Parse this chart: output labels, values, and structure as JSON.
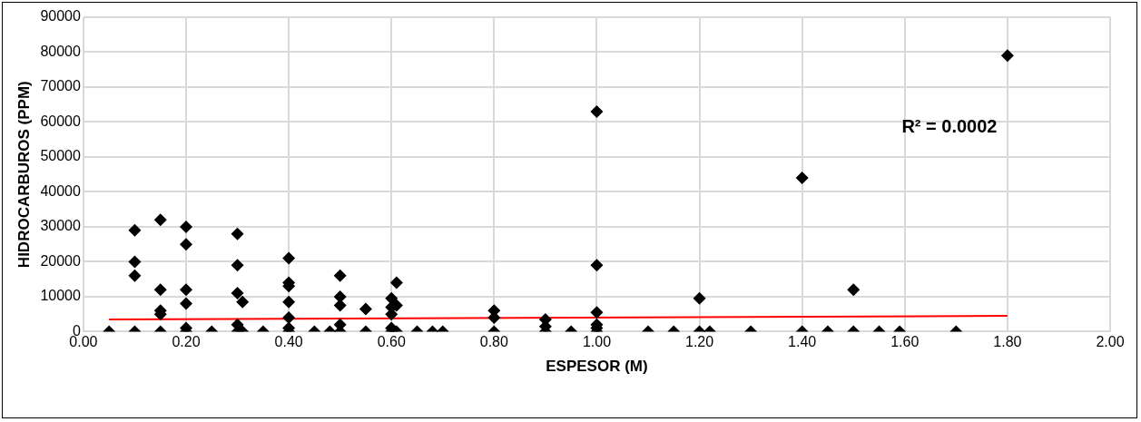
{
  "chart_data": {
    "type": "scatter",
    "xlabel": "ESPESOR (M)",
    "ylabel": "HIDROCARBUROS (PPM)",
    "xlim": [
      0,
      2
    ],
    "xticks": [
      {
        "value": 0,
        "label": "0.00"
      },
      {
        "value": 0.2,
        "label": "0.20"
      },
      {
        "value": 0.4,
        "label": "0.40"
      },
      {
        "value": 0.6,
        "label": "0.60"
      },
      {
        "value": 0.8,
        "label": "0.80"
      },
      {
        "value": 1,
        "label": "1.00"
      },
      {
        "value": 1.2,
        "label": "1.20"
      },
      {
        "value": 1.4,
        "label": "1.40"
      },
      {
        "value": 1.6,
        "label": "1.60"
      },
      {
        "value": 1.8,
        "label": "1.80"
      },
      {
        "value": 2,
        "label": "2.00"
      }
    ],
    "ylim": [
      0,
      90000
    ],
    "yticks": [
      0,
      10000,
      20000,
      30000,
      40000,
      50000,
      60000,
      70000,
      80000,
      90000
    ],
    "grid": true,
    "legend": false,
    "marker": "diamond",
    "annotations": [
      "R² = 0.0002"
    ],
    "series": [
      {
        "color": "#000000",
        "x": [
          0.05,
          0.1,
          0.1,
          0.1,
          0.1,
          0.15,
          0.15,
          0.15,
          0.15,
          0.15,
          0.2,
          0.2,
          0.2,
          0.2,
          0.2,
          0.2,
          0.25,
          0.3,
          0.3,
          0.3,
          0.3,
          0.3,
          0.31,
          0.31,
          0.35,
          0.4,
          0.4,
          0.4,
          0.4,
          0.4,
          0.4,
          0.4,
          0.45,
          0.48,
          0.5,
          0.5,
          0.5,
          0.5,
          0.5,
          0.55,
          0.55,
          0.6,
          0.6,
          0.6,
          0.6,
          0.6,
          0.61,
          0.61,
          0.61,
          0.65,
          0.68,
          0.7,
          0.8,
          0.8,
          0.8,
          0.9,
          0.9,
          0.9,
          0.95,
          1,
          1,
          1,
          1,
          1,
          1,
          1.1,
          1.15,
          1.2,
          1.2,
          1.22,
          1.3,
          1.4,
          1.4,
          1.45,
          1.5,
          1.5,
          1.55,
          1.59,
          1.7,
          1.8
        ],
        "values": [
          0,
          29000,
          20000,
          16000,
          0,
          32000,
          12000,
          6000,
          5000,
          0,
          30000,
          25000,
          12000,
          8000,
          1000,
          0,
          0,
          28000,
          19000,
          11000,
          2000,
          0,
          8500,
          0,
          0,
          21000,
          14000,
          13000,
          8500,
          4000,
          1000,
          0,
          0,
          0,
          16000,
          10000,
          7500,
          2000,
          0,
          6500,
          0,
          9500,
          7000,
          5000,
          1000,
          0,
          14000,
          7500,
          0,
          0,
          0,
          0,
          6000,
          4000,
          0,
          3500,
          1500,
          0,
          0,
          63000,
          19000,
          5500,
          2000,
          1000,
          0,
          0,
          0,
          9500,
          0,
          0,
          0,
          44000,
          0,
          0,
          12000,
          0,
          0,
          0,
          0,
          79000
        ]
      },
      {
        "type": "line",
        "color": "#ff0000",
        "marker": "none",
        "x": [
          0.05,
          1.8
        ],
        "values": [
          3500,
          4500
        ]
      }
    ]
  }
}
